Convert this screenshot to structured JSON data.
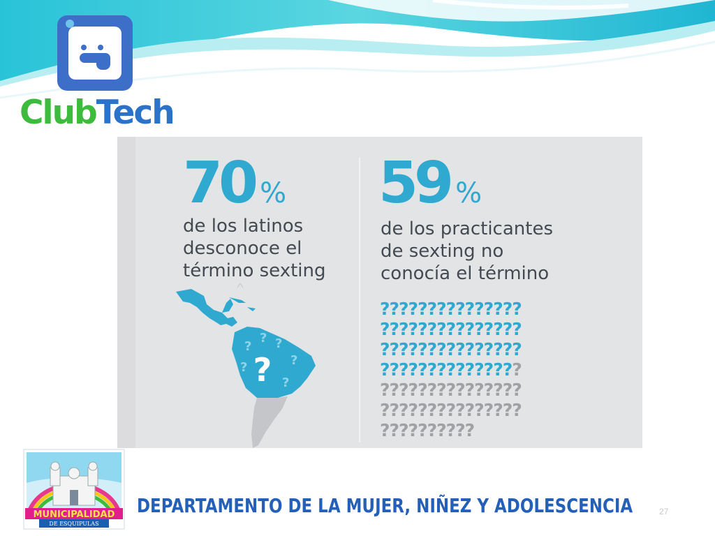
{
  "brand": {
    "name_part1": "Club",
    "name_part2": "Tech",
    "color_green": "#3dbb3c",
    "color_blue": "#2a73c9",
    "logo_icon": "smiley-app-icon"
  },
  "infographic": {
    "left": {
      "value": "70",
      "unit": "%",
      "caption": "de los latinos\ndesconoce el\ntérmino sexting"
    },
    "right": {
      "value": "59",
      "unit": "%",
      "caption": "de los practicantes\nde sexting no\nconocía el término"
    },
    "accent_color": "#2fa9cf",
    "muted_color": "#9fa1a4",
    "question_glyph": "?",
    "question_grid": {
      "highlighted_fraction": 0.59,
      "rows": [
        {
          "blue": 15,
          "grey": 0
        },
        {
          "blue": 15,
          "grey": 0
        },
        {
          "blue": 15,
          "grey": 0
        },
        {
          "blue": 14,
          "grey": 1
        },
        {
          "blue": 0,
          "grey": 15
        },
        {
          "blue": 0,
          "grey": 15
        },
        {
          "blue": 0,
          "grey": 10
        }
      ]
    },
    "map_icon": "latin-america-map-icon",
    "map_question_glyph": "?"
  },
  "footer": {
    "department": "DEPARTAMENTO DE LA MUJER, NIÑEZ Y ADOLESCENCIA",
    "municipality_logo": "municipalidad-de-esquipulas-logo",
    "page_number": "27"
  }
}
